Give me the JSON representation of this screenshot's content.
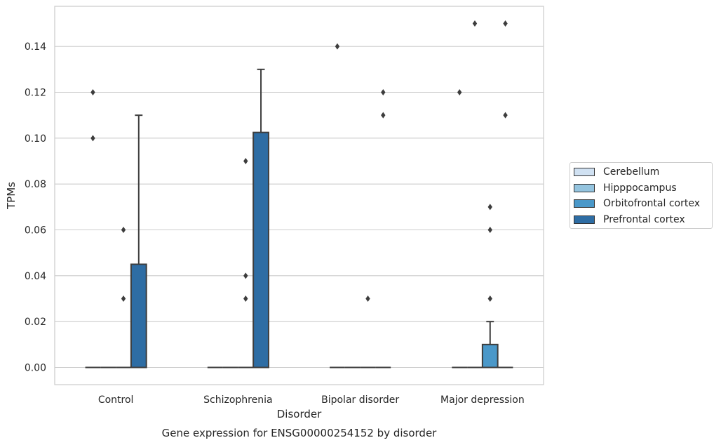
{
  "chart_data": {
    "type": "box",
    "title": "",
    "caption": "Gene expression for ENSG00000254152 by disorder",
    "xlabel": "Disorder",
    "ylabel": "TPMs",
    "ylim": [
      -0.0075,
      0.1575
    ],
    "yticks": [
      "0.00",
      "0.02",
      "0.04",
      "0.06",
      "0.08",
      "0.10",
      "0.12",
      "0.14"
    ],
    "categories": [
      "Control",
      "Schizophrenia",
      "Bipolar disorder",
      "Major depression"
    ],
    "grid": "horizontal",
    "legend_position": "right",
    "series": [
      {
        "name": "Cerebellum",
        "color": "#d0e1f2",
        "boxes": [
          {
            "q1": 0,
            "median": 0,
            "q3": 0,
            "whisker_low": 0,
            "whisker_high": 0,
            "outliers": [
              0.12,
              0.1
            ]
          },
          {
            "q1": 0,
            "median": 0,
            "q3": 0,
            "whisker_low": 0,
            "whisker_high": 0,
            "outliers": []
          },
          {
            "q1": 0,
            "median": 0,
            "q3": 0,
            "whisker_low": 0,
            "whisker_high": 0,
            "outliers": [
              0.14
            ]
          },
          {
            "q1": 0,
            "median": 0,
            "q3": 0,
            "whisker_low": 0,
            "whisker_high": 0,
            "outliers": [
              0.12
            ]
          }
        ]
      },
      {
        "name": "Hipppocampus",
        "color": "#94c4df",
        "boxes": [
          {
            "q1": 0,
            "median": 0,
            "q3": 0,
            "whisker_low": 0,
            "whisker_high": 0,
            "outliers": []
          },
          {
            "q1": 0,
            "median": 0,
            "q3": 0,
            "whisker_low": 0,
            "whisker_high": 0,
            "outliers": []
          },
          {
            "q1": 0,
            "median": 0,
            "q3": 0,
            "whisker_low": 0,
            "whisker_high": 0,
            "outliers": []
          },
          {
            "q1": 0,
            "median": 0,
            "q3": 0,
            "whisker_low": 0,
            "whisker_high": 0,
            "outliers": [
              0.15
            ]
          }
        ]
      },
      {
        "name": "Orbitofrontal cortex",
        "color": "#4a98c9",
        "boxes": [
          {
            "q1": 0,
            "median": 0,
            "q3": 0,
            "whisker_low": 0,
            "whisker_high": 0,
            "outliers": [
              0.06,
              0.03
            ]
          },
          {
            "q1": 0,
            "median": 0,
            "q3": 0,
            "whisker_low": 0,
            "whisker_high": 0,
            "outliers": [
              0.09,
              0.04,
              0.03
            ]
          },
          {
            "q1": 0,
            "median": 0,
            "q3": 0,
            "whisker_low": 0,
            "whisker_high": 0,
            "outliers": [
              0.03
            ]
          },
          {
            "q1": 0,
            "median": 0,
            "q3": 0.01,
            "whisker_low": 0,
            "whisker_high": 0.02,
            "outliers": [
              0.07,
              0.06,
              0.03
            ]
          }
        ]
      },
      {
        "name": "Prefrontal cortex",
        "color": "#2e6da4",
        "boxes": [
          {
            "q1": 0,
            "median": 0,
            "q3": 0.045,
            "whisker_low": 0,
            "whisker_high": 0.11,
            "outliers": []
          },
          {
            "q1": 0,
            "median": 0,
            "q3": 0.1025,
            "whisker_low": 0,
            "whisker_high": 0.13,
            "outliers": []
          },
          {
            "q1": 0,
            "median": 0,
            "q3": 0,
            "whisker_low": 0,
            "whisker_high": 0,
            "outliers": [
              0.12,
              0.11
            ]
          },
          {
            "q1": 0,
            "median": 0,
            "q3": 0,
            "whisker_low": 0,
            "whisker_high": 0,
            "outliers": [
              0.15,
              0.11
            ]
          }
        ]
      }
    ]
  }
}
